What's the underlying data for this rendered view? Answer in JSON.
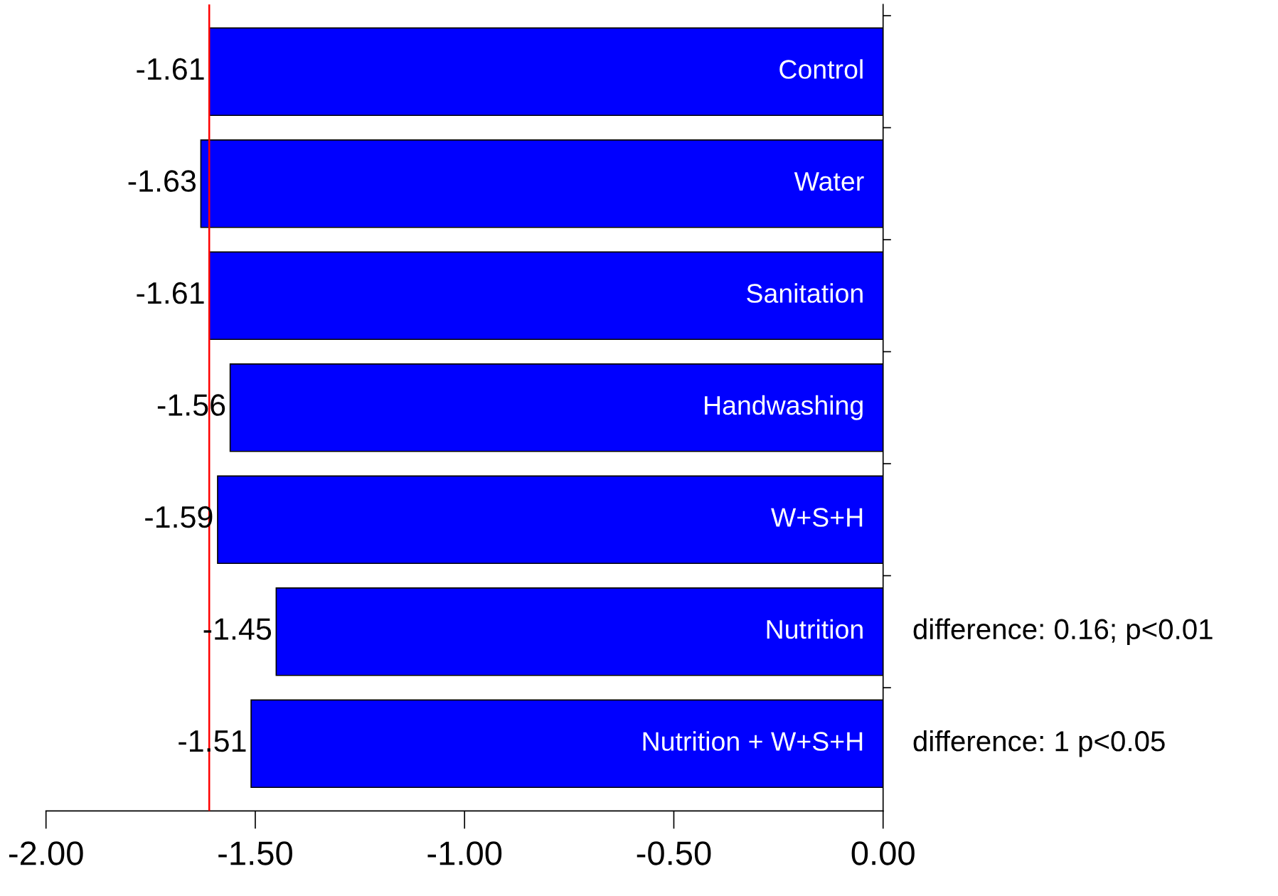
{
  "chart_data": {
    "type": "bar",
    "orientation": "horizontal",
    "categories": [
      "Control",
      "Water",
      "Sanitation",
      "Handwashing",
      "W+S+H",
      "Nutrition",
      "Nutrition + W+S+H"
    ],
    "values": [
      -1.61,
      -1.63,
      -1.61,
      -1.56,
      -1.59,
      -1.45,
      -1.51
    ],
    "color": "#0000ff",
    "data_labels": true,
    "xlim": [
      -2,
      0
    ],
    "xticks": [
      {
        "value": -2,
        "label": "-2.00"
      },
      {
        "value": -1.5,
        "label": "-1.50"
      },
      {
        "value": -1,
        "label": "-1.00"
      },
      {
        "value": -0.5,
        "label": "-0.50"
      },
      {
        "value": 0,
        "label": "0.00"
      }
    ],
    "ref_lines": [
      {
        "axis": "x",
        "value": -1.61,
        "color": "#ff0000"
      }
    ],
    "annotations": [
      "difference: 0.16; p<0.01",
      "difference: 1 p<0.05"
    ],
    "tick_labels": "x",
    "grid": false
  }
}
